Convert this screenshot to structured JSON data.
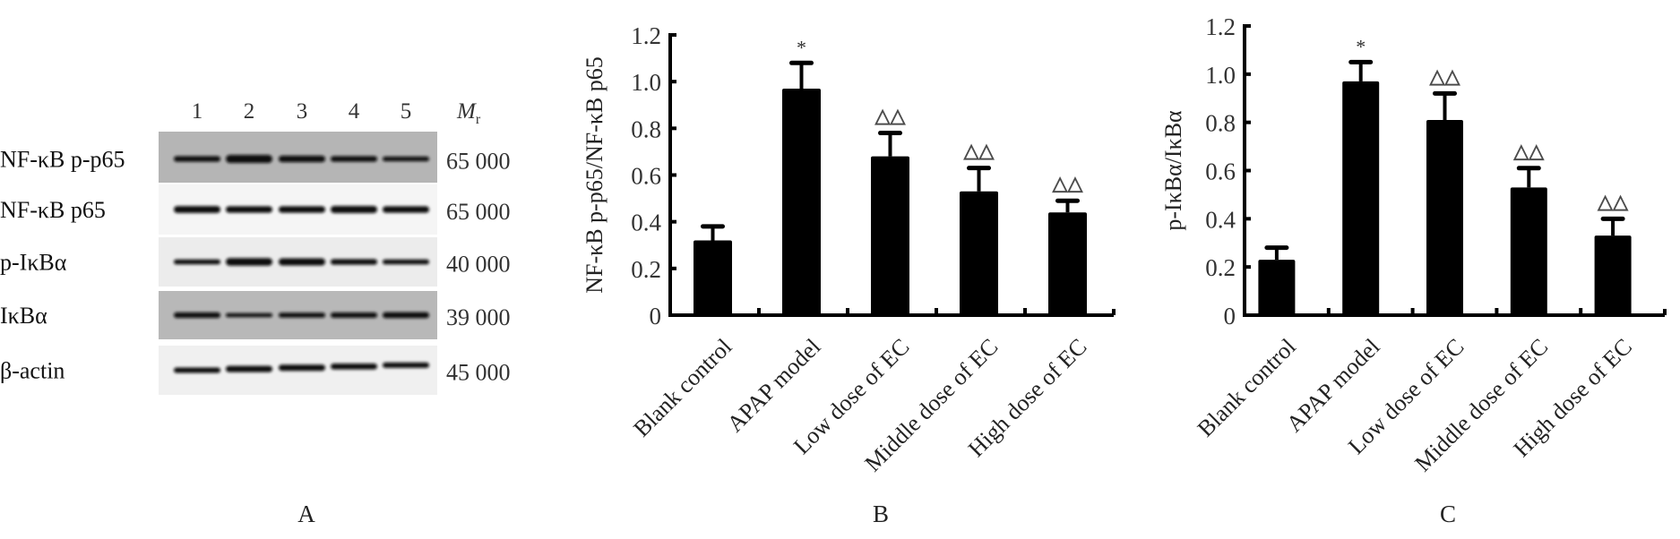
{
  "panel_a": {
    "panel_label": "A",
    "lanes": [
      "1",
      "2",
      "3",
      "4",
      "5"
    ],
    "mr_label": "M",
    "mr_subscript": "r",
    "rows": [
      {
        "label": "NF-κB p-p65",
        "mr": "65 000",
        "background": "#b5b5b5"
      },
      {
        "label": "NF-κB p65",
        "mr": "65 000",
        "background": "#f5f5f5"
      },
      {
        "label": "p-IκBα",
        "mr": "40 000",
        "background": "#ececec"
      },
      {
        "label": "IκBα",
        "mr": "39 000",
        "background": "#b8b8b8"
      },
      {
        "label": "β-actin",
        "mr": "45 000",
        "background": "#f0f0f0"
      }
    ]
  },
  "chart_data": [
    {
      "type": "bar",
      "panel_label": "B",
      "categories": [
        "Blank control",
        "APAP model",
        "Low dose of EC",
        "Middle  dose of EC",
        "High dose of EC"
      ],
      "values": [
        0.32,
        0.97,
        0.68,
        0.53,
        0.44
      ],
      "error_upper": [
        0.38,
        1.08,
        0.78,
        0.63,
        0.49
      ],
      "annotations": [
        "",
        "*",
        "△△",
        "△△",
        "△△"
      ],
      "ylabel": "NF-κB p-p65/NF-κB p65",
      "xlabel": "",
      "ylim": [
        0,
        1.2
      ],
      "yticks": [
        "0",
        "0.2",
        "0.4",
        "0.6",
        "0.8",
        "1.0",
        "1.2"
      ],
      "grid": false,
      "bar_color": "#000000"
    },
    {
      "type": "bar",
      "panel_label": "C",
      "categories": [
        "Blank control",
        "APAP model",
        "Low dose of EC",
        "Middle  dose of EC",
        "High dose of EC"
      ],
      "values": [
        0.23,
        0.97,
        0.81,
        0.53,
        0.33
      ],
      "error_upper": [
        0.28,
        1.05,
        0.92,
        0.61,
        0.4
      ],
      "annotations": [
        "",
        "*",
        "△△",
        "△△",
        "△△"
      ],
      "ylabel": "p-IκBα/IκBα",
      "xlabel": "",
      "ylim": [
        0,
        1.2
      ],
      "yticks": [
        "0",
        "0.2",
        "0.4",
        "0.6",
        "0.8",
        "1.0",
        "1.2"
      ],
      "grid": false,
      "bar_color": "#000000"
    }
  ]
}
